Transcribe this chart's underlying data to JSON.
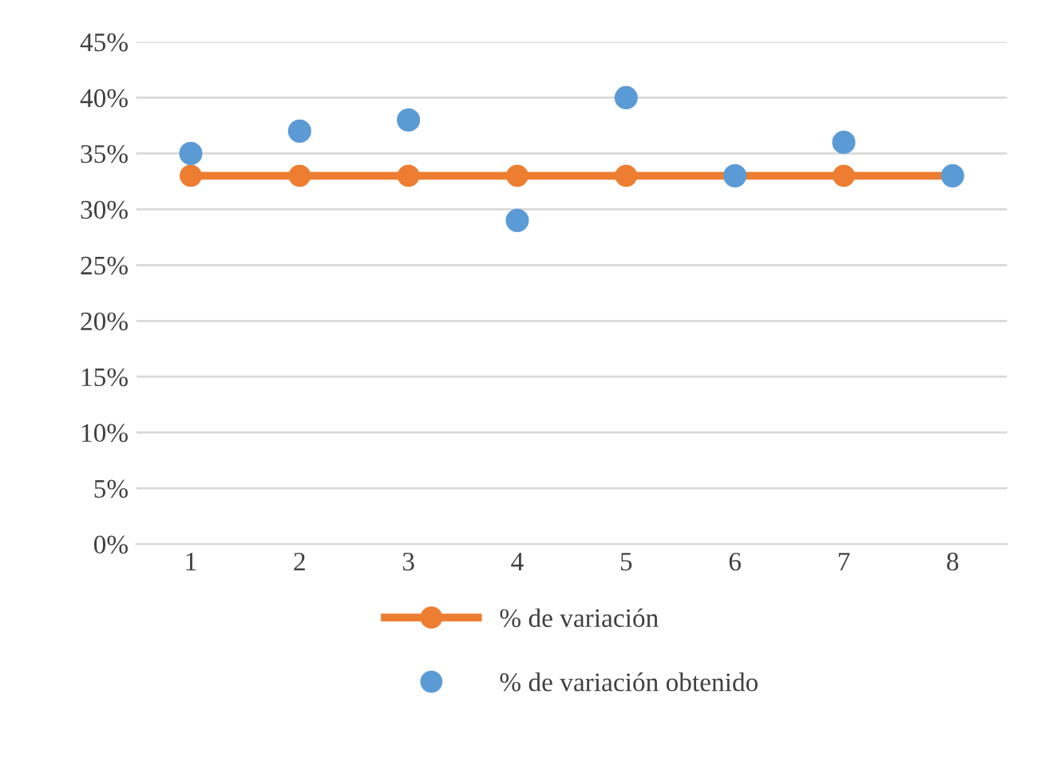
{
  "chart_data": {
    "type": "line",
    "categories": [
      "1",
      "2",
      "3",
      "4",
      "5",
      "6",
      "7",
      "8"
    ],
    "series": [
      {
        "name": "% de variación",
        "color": "#ed7d31",
        "marker": "circle",
        "values": [
          33,
          33,
          33,
          33,
          33,
          33,
          33,
          33
        ]
      },
      {
        "name": "% de variación obtenido",
        "type": "scatter",
        "color": "#5b9bd5",
        "marker": "circle",
        "values": [
          35,
          37,
          38,
          29,
          40,
          33,
          36,
          33
        ]
      }
    ],
    "ylim": [
      0,
      45
    ],
    "yticks": [
      {
        "value": 0,
        "label": "0%"
      },
      {
        "value": 5,
        "label": "5%"
      },
      {
        "value": 10,
        "label": "10%"
      },
      {
        "value": 15,
        "label": "15%"
      },
      {
        "value": 20,
        "label": "20%"
      },
      {
        "value": 25,
        "label": "25%"
      },
      {
        "value": 30,
        "label": "30%"
      },
      {
        "value": 35,
        "label": "35%"
      },
      {
        "value": 40,
        "label": "40%"
      },
      {
        "value": 45,
        "label": "45%"
      }
    ],
    "grid": "y",
    "legend": "bottom"
  }
}
